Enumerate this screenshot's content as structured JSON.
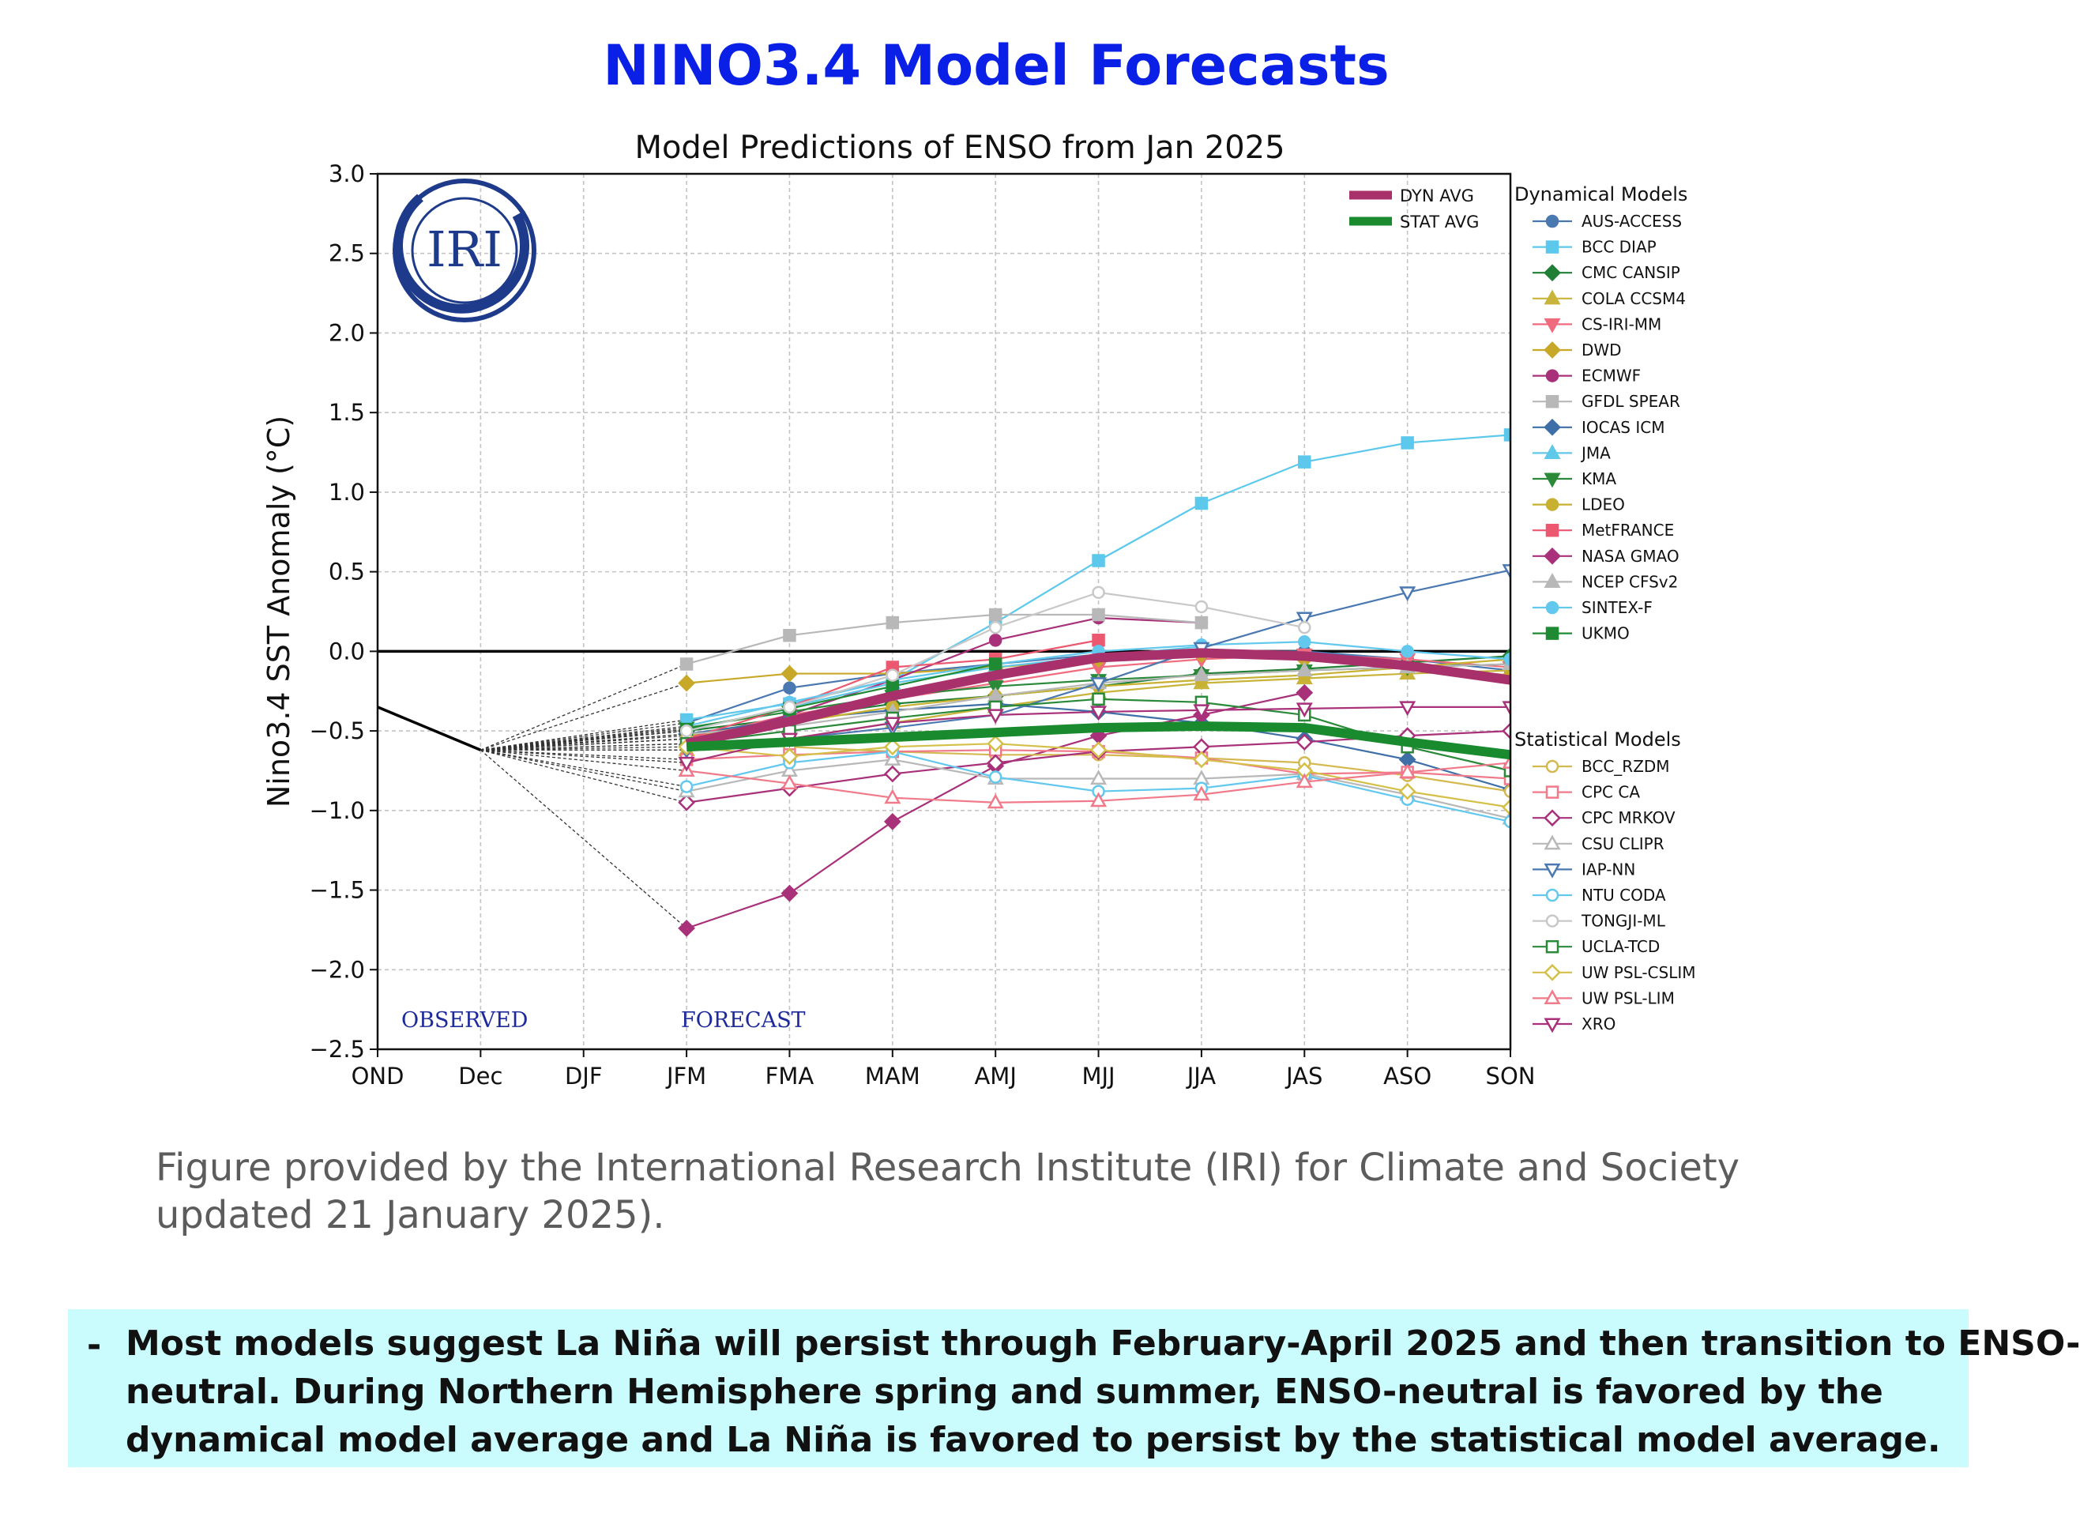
{
  "page": {
    "title": "NINO3.4 Model Forecasts",
    "caption_lines": [
      "Figure provided by the International Research Institute (IRI) for Climate and Society",
      "updated 21 January 2025)."
    ],
    "note_bullet": "-",
    "note_lines": [
      "Most models suggest La Niña will persist through February-April 2025 and then transition to ENSO-",
      "neutral.  During Northern Hemisphere spring and summer, ENSO-neutral is favored by the",
      "dynamical model average and La Niña is favored to persist by the statistical model average."
    ]
  },
  "chart_data": {
    "type": "line",
    "title": "Model Predictions of ENSO from Jan 2025",
    "ylabel": "Nino3.4 SST Anomaly (°C)",
    "xlabel": "",
    "categories": [
      "OND",
      "Dec",
      "DJF",
      "JFM",
      "FMA",
      "MAM",
      "AMJ",
      "MJJ",
      "JJA",
      "JAS",
      "ASO",
      "SON"
    ],
    "ylim": [
      -2.5,
      3.0
    ],
    "yticks": [
      3.0,
      2.5,
      2.0,
      1.5,
      1.0,
      0.5,
      0.0,
      -0.5,
      -1.0,
      -1.5,
      -2.0,
      -2.5
    ],
    "ytick_labels": [
      "3.0",
      "2.5",
      "2.0",
      "1.5",
      "1.0",
      "0.5",
      "0.0",
      "−0.5",
      "−1.0",
      "−1.5",
      "−2.0",
      "−2.5"
    ],
    "grid": true,
    "logo_text": "IRI",
    "annotations": [
      "OBSERVED",
      "FORECAST"
    ],
    "observed": {
      "categories": [
        "OND",
        "Dec"
      ],
      "values": [
        -0.35,
        -0.62
      ]
    },
    "averages_legend_position": "top-right",
    "averages": [
      {
        "name": "DYN AVG",
        "color": "#a8316c",
        "values": [
          -0.58,
          -0.44,
          -0.28,
          -0.15,
          -0.04,
          -0.01,
          -0.03,
          -0.09,
          -0.18
        ]
      },
      {
        "name": "STAT AVG",
        "color": "#1a8a2f",
        "values": [
          -0.6,
          -0.57,
          -0.54,
          -0.51,
          -0.48,
          -0.47,
          -0.48,
          -0.57,
          -0.65
        ]
      }
    ],
    "dynamical_models_title": "Dynamical Models",
    "dynamical_models": [
      {
        "name": "AUS-ACCESS",
        "color": "#4a78b0",
        "marker": "circle",
        "values": [
          -0.45,
          -0.23,
          -0.14,
          -0.08,
          -0.02,
          0.0,
          0.0,
          -0.05,
          -0.12
        ]
      },
      {
        "name": "BCC DIAP",
        "color": "#5bc8ec",
        "marker": "square",
        "values": [
          -0.43,
          -0.33,
          -0.18,
          0.18,
          0.57,
          0.93,
          1.19,
          1.31,
          1.36
        ]
      },
      {
        "name": "CMC CANSIP",
        "color": "#1f7f34",
        "marker": "diamond",
        "values": [
          -0.5,
          -0.42,
          -0.33,
          -0.28,
          -0.22,
          -0.14,
          -0.11,
          -0.07,
          -0.03
        ]
      },
      {
        "name": "COLA CCSM4",
        "color": "#c8b43a",
        "marker": "triangle-up",
        "values": [
          -0.62,
          -0.55,
          -0.45,
          -0.35,
          -0.26,
          -0.2,
          -0.17,
          -0.14,
          -0.12
        ]
      },
      {
        "name": "CS-IRI-MM",
        "color": "#f06b7e",
        "marker": "triangle-down",
        "values": [
          -0.55,
          -0.4,
          -0.3,
          -0.2,
          -0.1,
          -0.05,
          -0.02,
          -0.05,
          -0.1
        ]
      },
      {
        "name": "DWD",
        "color": "#c8a828",
        "marker": "diamond",
        "values": [
          -0.2,
          -0.14,
          -0.14,
          -0.1,
          -0.05,
          -0.02,
          -0.05,
          -0.1,
          -0.15
        ]
      },
      {
        "name": "ECMWF",
        "color": "#a8317a",
        "marker": "circle",
        "values": [
          -0.58,
          -0.4,
          -0.18,
          0.07,
          0.21,
          0.18,
          null,
          null,
          null
        ]
      },
      {
        "name": "GFDL SPEAR",
        "color": "#b8b8b8",
        "marker": "square",
        "values": [
          -0.08,
          0.1,
          0.18,
          0.23,
          0.23,
          0.18,
          null,
          null,
          null
        ]
      },
      {
        "name": "IOCAS ICM",
        "color": "#3e6fa6",
        "marker": "diamond",
        "values": [
          -0.52,
          -0.43,
          -0.37,
          -0.33,
          -0.38,
          -0.45,
          -0.55,
          -0.68,
          -0.87
        ]
      },
      {
        "name": "JMA",
        "color": "#60c8e8",
        "marker": "triangle-up",
        "values": [
          -0.5,
          -0.35,
          -0.2,
          -0.1,
          -0.03,
          0.03,
          null,
          null,
          null
        ]
      },
      {
        "name": "KMA",
        "color": "#2a8a3a",
        "marker": "triangle-down",
        "values": [
          -0.48,
          -0.38,
          -0.28,
          -0.22,
          -0.18,
          -0.15,
          -0.12,
          -0.1,
          -0.08
        ]
      },
      {
        "name": "LDEO",
        "color": "#c8b030",
        "marker": "circle",
        "values": [
          -0.53,
          -0.45,
          -0.35,
          -0.28,
          -0.22,
          -0.18,
          -0.15,
          -0.1,
          -0.05
        ]
      },
      {
        "name": "MetFRANCE",
        "color": "#ec5870",
        "marker": "square",
        "values": [
          -0.55,
          -0.35,
          -0.1,
          -0.05,
          0.07,
          null,
          null,
          null,
          null
        ]
      },
      {
        "name": "NASA GMAO",
        "color": "#a8317a",
        "marker": "diamond",
        "values": [
          -1.74,
          -1.52,
          -1.07,
          -0.72,
          -0.53,
          -0.4,
          -0.26,
          null,
          null
        ]
      },
      {
        "name": "NCEP CFSv2",
        "color": "#b8b8b8",
        "marker": "triangle-up",
        "values": [
          -0.52,
          -0.47,
          -0.38,
          -0.28,
          -0.2,
          -0.15,
          -0.12,
          -0.1,
          -0.08
        ]
      },
      {
        "name": "SINTEX-F",
        "color": "#62c8ee",
        "marker": "circle",
        "values": [
          -0.47,
          -0.32,
          -0.18,
          -0.08,
          0.0,
          0.04,
          0.06,
          0.0,
          -0.05
        ]
      },
      {
        "name": "UKMO",
        "color": "#1f8a34",
        "marker": "square",
        "values": [
          -0.49,
          -0.36,
          -0.22,
          -0.08,
          null,
          null,
          null,
          null,
          null
        ]
      }
    ],
    "statistical_models_title": "Statistical Models",
    "statistical_models": [
      {
        "name": "BCC_RZDM",
        "color": "#d4b850",
        "marker": "circle-open",
        "values": [
          -0.55,
          -0.6,
          -0.63,
          -0.65,
          -0.65,
          -0.67,
          -0.7,
          -0.78,
          -0.88
        ]
      },
      {
        "name": "CPC CA",
        "color": "#f07a8a",
        "marker": "square-open",
        "values": [
          -0.68,
          -0.65,
          -0.63,
          -0.62,
          -0.63,
          -0.67,
          -0.77,
          -0.76,
          -0.8
        ]
      },
      {
        "name": "CPC MRKOV",
        "color": "#a8317a",
        "marker": "diamond-open",
        "values": [
          -0.95,
          -0.86,
          -0.77,
          -0.7,
          -0.63,
          -0.6,
          -0.57,
          -0.53,
          -0.5
        ]
      },
      {
        "name": "CSU CLIPR",
        "color": "#b8b8b8",
        "marker": "triangle-up-open",
        "values": [
          -0.88,
          -0.75,
          -0.68,
          -0.8,
          -0.8,
          -0.8,
          -0.77,
          -0.9,
          -1.05
        ]
      },
      {
        "name": "IAP-NN",
        "color": "#4a78b0",
        "marker": "triangle-down-open",
        "values": [
          -0.62,
          -0.55,
          -0.48,
          -0.4,
          -0.2,
          0.02,
          0.21,
          0.37,
          0.51
        ]
      },
      {
        "name": "NTU CODA",
        "color": "#62c8ee",
        "marker": "circle-open",
        "values": [
          -0.85,
          -0.7,
          -0.63,
          -0.79,
          -0.88,
          -0.86,
          -0.78,
          -0.93,
          -1.07
        ]
      },
      {
        "name": "TONGJI-ML",
        "color": "#c8c8c8",
        "marker": "circle-open",
        "values": [
          -0.5,
          -0.35,
          -0.15,
          0.15,
          0.37,
          0.28,
          0.15,
          null,
          null
        ]
      },
      {
        "name": "UCLA-TCD",
        "color": "#2a8a3a",
        "marker": "square-open",
        "values": [
          -0.58,
          -0.5,
          -0.42,
          -0.35,
          -0.3,
          -0.32,
          -0.4,
          -0.6,
          -0.75
        ]
      },
      {
        "name": "UW PSL-CSLIM",
        "color": "#d4c048",
        "marker": "diamond-open",
        "values": [
          -0.6,
          -0.66,
          -0.6,
          -0.58,
          -0.62,
          -0.68,
          -0.75,
          -0.88,
          -0.98
        ]
      },
      {
        "name": "UW PSL-LIM",
        "color": "#f07a8a",
        "marker": "triangle-up-open",
        "values": [
          -0.75,
          -0.83,
          -0.92,
          -0.95,
          -0.94,
          -0.9,
          -0.82,
          -0.76,
          -0.7
        ]
      },
      {
        "name": "XRO",
        "color": "#a8317a",
        "marker": "triangle-down-open",
        "values": [
          -0.7,
          -0.55,
          -0.45,
          -0.4,
          -0.38,
          -0.37,
          -0.36,
          -0.35,
          -0.35
        ]
      }
    ]
  }
}
